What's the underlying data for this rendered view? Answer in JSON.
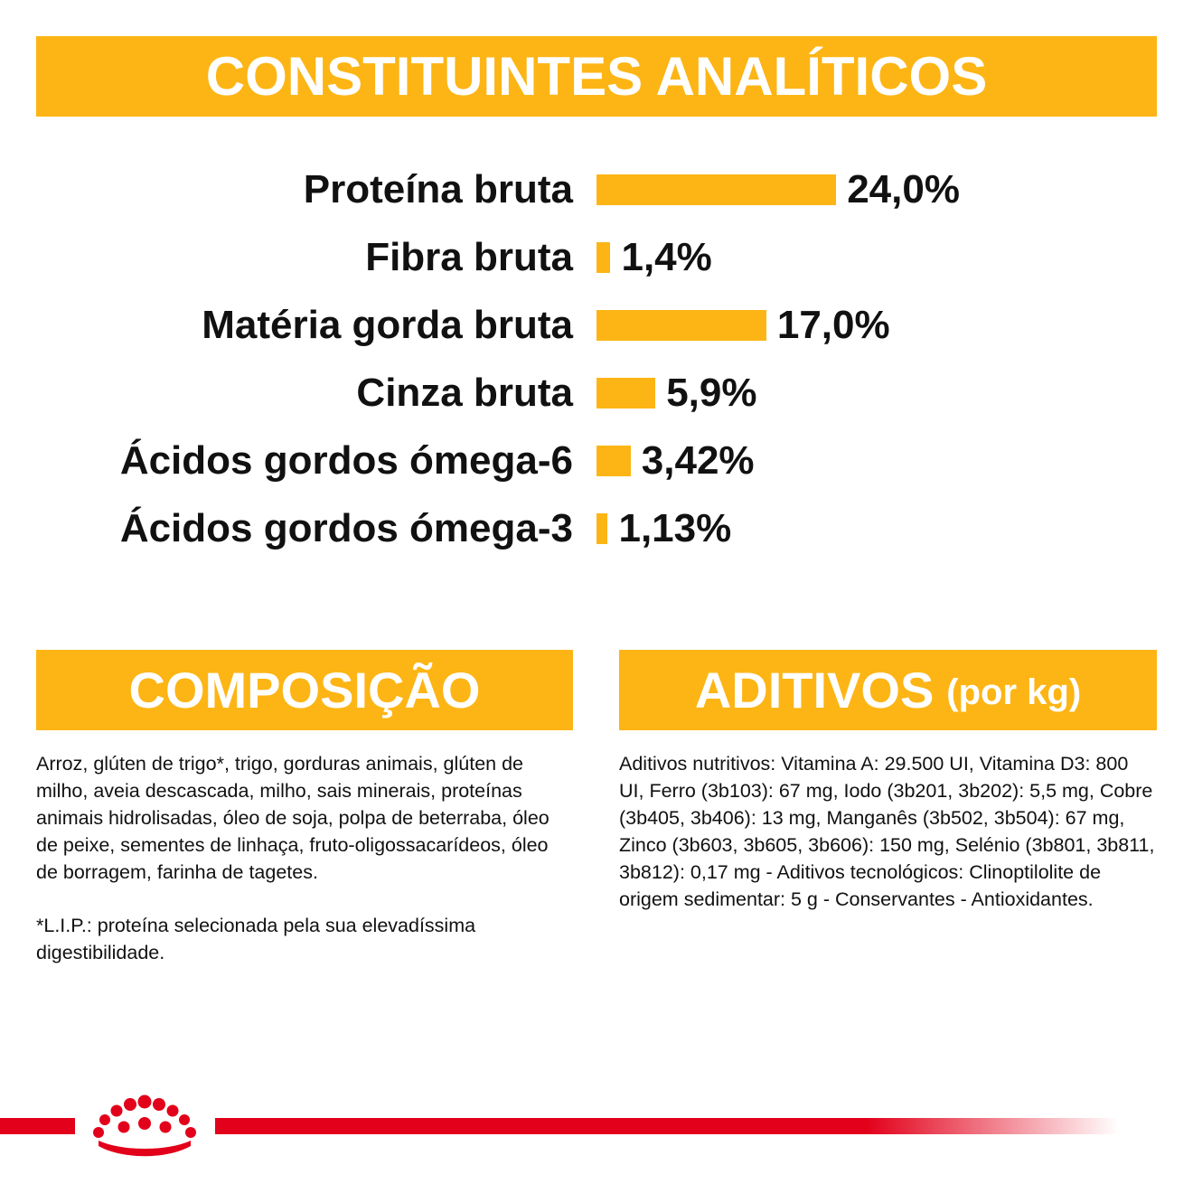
{
  "header": {
    "title": "CONSTITUINTES ANALÍTICOS"
  },
  "chart_data": {
    "type": "bar",
    "orientation": "horizontal",
    "categories": [
      "Proteína bruta",
      "Fibra bruta",
      "Matéria gorda bruta",
      "Cinza bruta",
      "Ácidos gordos ómega-6",
      "Ácidos gordos ómega-3"
    ],
    "values": [
      24.0,
      1.4,
      17.0,
      5.9,
      3.42,
      1.13
    ],
    "value_labels": [
      "24,0%",
      "1,4%",
      "17,0%",
      "5,9%",
      "3,42%",
      "1,13%"
    ],
    "bar_color": "#FDB515",
    "grid": false,
    "legend": "none"
  },
  "composicao": {
    "title": "COMPOSIÇÃO",
    "text": "Arroz, glúten de trigo*, trigo, gorduras animais, glúten de milho, aveia descascada, milho, sais minerais, proteínas animais hidrolisadas, óleo de soja, polpa de beterraba, óleo de peixe, sementes de linhaça, fruto-oligossacarídeos, óleo de borragem, farinha de tagetes.",
    "note": "*L.I.P.: proteína selecionada pela sua elevadíssima digestibilidade."
  },
  "aditivos": {
    "title": "ADITIVOS",
    "title_suffix": "(por kg)",
    "text": "Aditivos nutritivos: Vitamina A: 29.500 UI, Vitamina D3: 800 UI, Ferro (3b103): 67 mg, Iodo (3b201, 3b202): 5,5 mg, Cobre (3b405, 3b406): 13 mg, Manganês (3b502, 3b504): 67 mg, Zinco (3b603, 3b605, 3b606): 150 mg, Selénio (3b801, 3b811, 3b812): 0,17 mg - Aditivos tecnológicos: Clinoptilolite de origem sedimentar: 5 g - Conservantes - Antioxidantes."
  },
  "footer": {
    "logo_icon": "crown-logo-icon",
    "accent_color": "#E2001A"
  },
  "colors": {
    "banner": "#FDB515",
    "accent": "#E2001A"
  }
}
